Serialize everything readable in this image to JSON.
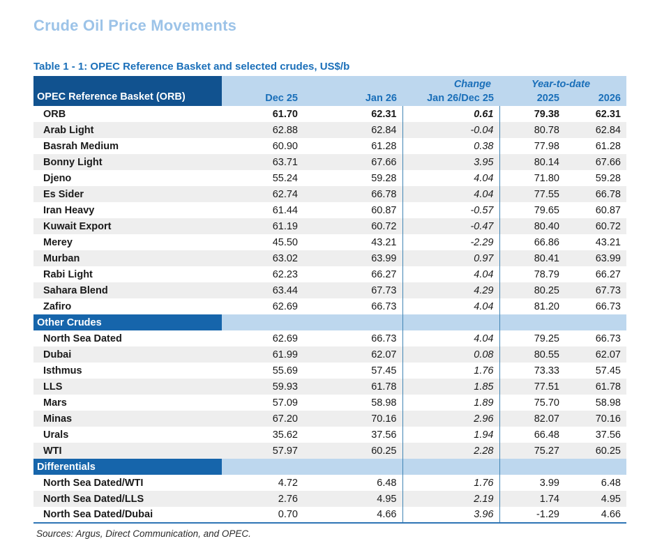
{
  "page": {
    "title": "Crude Oil Price Movements",
    "footnote": "Sources:  Argus, Direct Communication, and OPEC."
  },
  "table": {
    "caption": "Table 1 - 1: OPEC Reference Basket and selected crudes, US$/b",
    "corner_header": "OPEC Reference Basket (ORB)",
    "group_headers": {
      "change": "Change",
      "ytd": "Year-to-date"
    },
    "column_headers": [
      "Dec 25",
      "Jan 26",
      "Jan 26/Dec 25",
      "2025",
      "2026"
    ],
    "sections": [
      {
        "name": "",
        "rows": [
          {
            "label": "ORB",
            "values": [
              "61.70",
              "62.31",
              "0.61",
              "79.38",
              "62.31"
            ],
            "bold": true
          },
          {
            "label": "Arab Light",
            "values": [
              "62.88",
              "62.84",
              "-0.04",
              "80.78",
              "62.84"
            ]
          },
          {
            "label": "Basrah Medium",
            "values": [
              "60.90",
              "61.28",
              "0.38",
              "77.98",
              "61.28"
            ]
          },
          {
            "label": "Bonny Light",
            "values": [
              "63.71",
              "67.66",
              "3.95",
              "80.14",
              "67.66"
            ]
          },
          {
            "label": "Djeno",
            "values": [
              "55.24",
              "59.28",
              "4.04",
              "71.80",
              "59.28"
            ]
          },
          {
            "label": "Es Sider",
            "values": [
              "62.74",
              "66.78",
              "4.04",
              "77.55",
              "66.78"
            ]
          },
          {
            "label": "Iran Heavy",
            "values": [
              "61.44",
              "60.87",
              "-0.57",
              "79.65",
              "60.87"
            ]
          },
          {
            "label": "Kuwait Export",
            "values": [
              "61.19",
              "60.72",
              "-0.47",
              "80.40",
              "60.72"
            ]
          },
          {
            "label": "Merey",
            "values": [
              "45.50",
              "43.21",
              "-2.29",
              "66.86",
              "43.21"
            ]
          },
          {
            "label": "Murban",
            "values": [
              "63.02",
              "63.99",
              "0.97",
              "80.41",
              "63.99"
            ]
          },
          {
            "label": "Rabi Light",
            "values": [
              "62.23",
              "66.27",
              "4.04",
              "78.79",
              "66.27"
            ]
          },
          {
            "label": "Sahara Blend",
            "values": [
              "63.44",
              "67.73",
              "4.29",
              "80.25",
              "67.73"
            ]
          },
          {
            "label": "Zafiro",
            "values": [
              "62.69",
              "66.73",
              "4.04",
              "81.20",
              "66.73"
            ]
          }
        ]
      },
      {
        "name": "Other Crudes",
        "rows": [
          {
            "label": "North Sea Dated",
            "values": [
              "62.69",
              "66.73",
              "4.04",
              "79.25",
              "66.73"
            ]
          },
          {
            "label": "Dubai",
            "values": [
              "61.99",
              "62.07",
              "0.08",
              "80.55",
              "62.07"
            ]
          },
          {
            "label": "Isthmus",
            "values": [
              "55.69",
              "57.45",
              "1.76",
              "73.33",
              "57.45"
            ]
          },
          {
            "label": "LLS",
            "values": [
              "59.93",
              "61.78",
              "1.85",
              "77.51",
              "61.78"
            ]
          },
          {
            "label": "Mars",
            "values": [
              "57.09",
              "58.98",
              "1.89",
              "75.70",
              "58.98"
            ]
          },
          {
            "label": "Minas",
            "values": [
              "67.20",
              "70.16",
              "2.96",
              "82.07",
              "70.16"
            ]
          },
          {
            "label": "Urals",
            "values": [
              "35.62",
              "37.56",
              "1.94",
              "66.48",
              "37.56"
            ]
          },
          {
            "label": "WTI",
            "values": [
              "57.97",
              "60.25",
              "2.28",
              "75.27",
              "60.25"
            ]
          }
        ]
      },
      {
        "name": "Differentials",
        "rows": [
          {
            "label": "North Sea Dated/WTI",
            "values": [
              "4.72",
              "6.48",
              "1.76",
              "3.99",
              "6.48"
            ]
          },
          {
            "label": "North Sea Dated/LLS",
            "values": [
              "2.76",
              "4.95",
              "2.19",
              "1.74",
              "4.95"
            ]
          },
          {
            "label": "North Sea Dated/Dubai",
            "values": [
              "0.70",
              "4.66",
              "3.96",
              "-1.29",
              "4.66"
            ]
          }
        ]
      }
    ]
  },
  "colors": {
    "title": "#9CC3E8",
    "caption": "#1A6FB9",
    "corner_header_bg": "#11528F",
    "section_header_bg": "#1665AB",
    "header_band_bg": "#BDD7EE",
    "alt_row_bg": "#EEEEEE",
    "column_separator": "#4185B4",
    "table_bottom_border": "#2E74B5"
  }
}
